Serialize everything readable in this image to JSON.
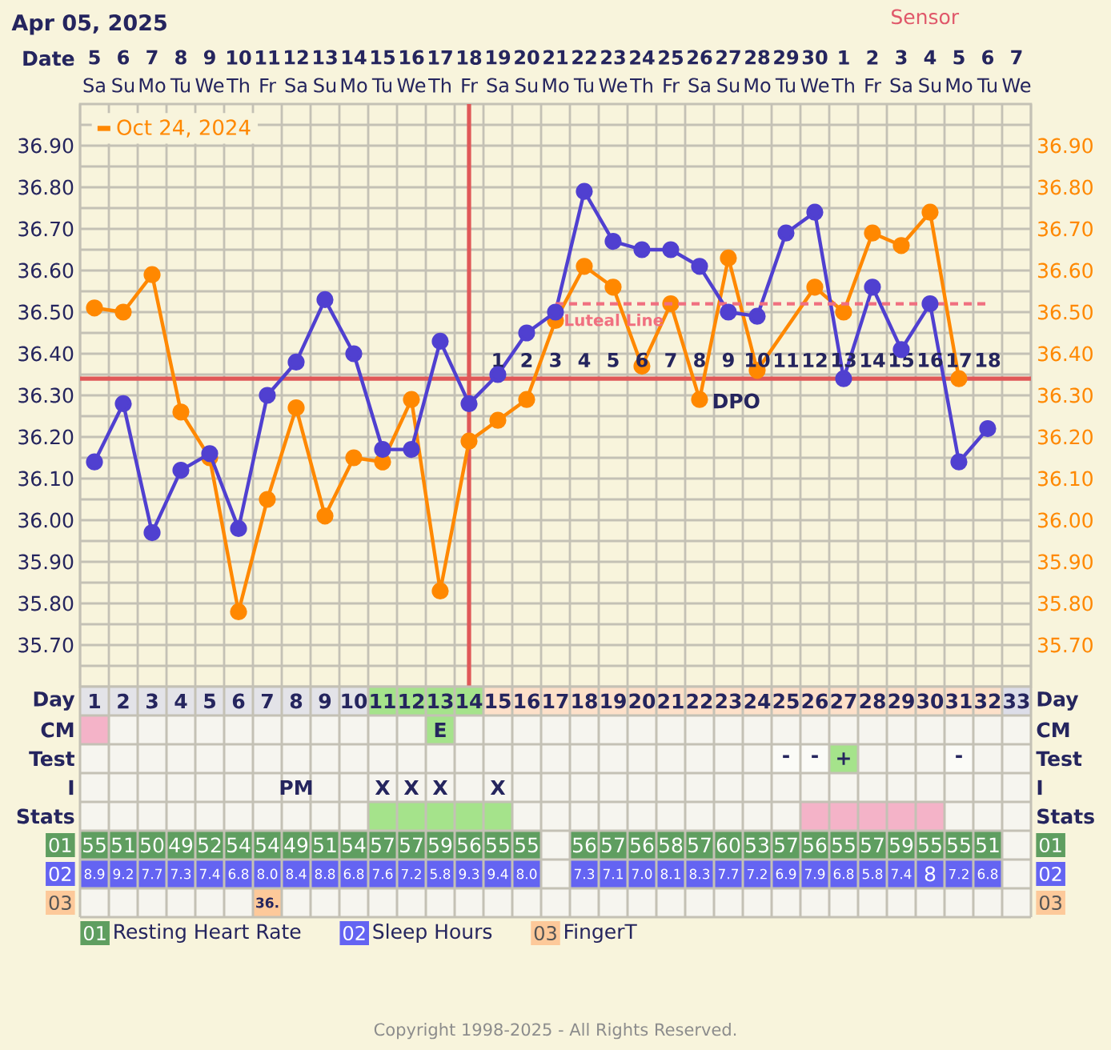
{
  "chart_data": [
    {
      "type": "line",
      "title": "Apr 05, 2025",
      "subtitle": "Sensor",
      "xlabel": "Date",
      "categories": [
        "**5** Sa",
        "**6** Su",
        "**7** Mo",
        "**8** Tu",
        "**9** We",
        "**10** Th",
        "**11** Fr",
        "**12** Sa",
        "**13** Su",
        "**14** Mo",
        "**15** Tu",
        "**16** We",
        "**17** Th",
        "**18** Fr",
        "**19** Sa",
        "**20** Su",
        "**21** Mo",
        "**22** Tu",
        "**23** We",
        "**24** Th",
        "**25** Fr",
        "**26** Sa",
        "**27** Su",
        "**28** Mo",
        "**29** Tu",
        "**30** We",
        "**1** Th",
        "**2** Fr",
        "**3** Sa",
        "**4** Su",
        "**5** Mo",
        "**6** Tu",
        "**7** We"
      ],
      "series": [
        {
          "color": "#5040d0",
          "values": [
            36.14,
            36.28,
            35.97,
            36.12,
            36.16,
            35.98,
            36.3,
            36.38,
            36.53,
            36.4,
            36.17,
            36.17,
            36.43,
            36.28,
            36.35,
            36.45,
            36.5,
            36.79,
            36.67,
            36.65,
            36.65,
            36.61,
            36.5,
            36.49,
            36.69,
            36.74,
            36.34,
            36.56,
            36.41,
            36.52,
            36.14,
            36.22,
            null
          ]
        },
        {
          "name": "Oct 24, 2024",
          "color": "#ff8800",
          "axis": "y2",
          "values": [
            36.51,
            36.5,
            36.59,
            36.26,
            36.15,
            35.78,
            36.05,
            36.27,
            36.01,
            36.15,
            36.14,
            36.29,
            35.83,
            36.19,
            36.24,
            36.29,
            36.48,
            36.61,
            36.56,
            36.37,
            36.52,
            36.29,
            36.63,
            36.36,
            null,
            36.56,
            36.5,
            36.69,
            36.66,
            36.74,
            36.34,
            null,
            null
          ]
        },
        {
          "name": "Luteal Line",
          "color": "#f07080",
          "marker": "none",
          "line_style": "dashed",
          "values": [
            null,
            null,
            null,
            null,
            null,
            null,
            null,
            null,
            null,
            null,
            null,
            null,
            null,
            null,
            null,
            null,
            36.52,
            36.52,
            36.52,
            36.52,
            36.52,
            36.52,
            36.52,
            36.52,
            36.52,
            36.52,
            36.52,
            36.52,
            36.52,
            36.52,
            36.52,
            36.52,
            null
          ]
        }
      ],
      "ylim": [
        35.6,
        37.0
      ],
      "yticks": [
        {
          "value": 35.65,
          "label": null
        },
        {
          "value": 35.7,
          "label": "35.70"
        },
        {
          "value": 35.75,
          "label": null
        },
        {
          "value": 35.8,
          "label": "35.80"
        },
        {
          "value": 35.85,
          "label": null
        },
        {
          "value": 35.9,
          "label": "35.90"
        },
        {
          "value": 35.95,
          "label": null
        },
        {
          "value": 36.0,
          "label": "36.00"
        },
        {
          "value": 36.05,
          "label": null
        },
        {
          "value": 36.1,
          "label": "36.10"
        },
        {
          "value": 36.15,
          "label": null
        },
        {
          "value": 36.2,
          "label": "36.20"
        },
        {
          "value": 36.25,
          "label": null
        },
        {
          "value": 36.3,
          "label": "36.30"
        },
        {
          "value": 36.35,
          "label": null
        },
        {
          "value": 36.4,
          "label": "36.40"
        },
        {
          "value": 36.45,
          "label": null
        },
        {
          "value": 36.5,
          "label": "36.50"
        },
        {
          "value": 36.55,
          "label": null
        },
        {
          "value": 36.6,
          "label": "36.60"
        },
        {
          "value": 36.65,
          "label": null
        },
        {
          "value": 36.7,
          "label": "36.70"
        },
        {
          "value": 36.75,
          "label": null
        },
        {
          "value": 36.8,
          "label": "36.80"
        },
        {
          "value": 36.85,
          "label": null
        },
        {
          "value": 36.9,
          "label": "36.90"
        },
        {
          "value": 36.95,
          "label": null
        }
      ],
      "y2lim": [
        35.6,
        37.0
      ],
      "y2ticks": [
        {
          "value": 35.7,
          "label": "35.70"
        },
        {
          "value": 35.8,
          "label": "35.80"
        },
        {
          "value": 35.9,
          "label": "35.90"
        },
        {
          "value": 36.0,
          "label": "36.00"
        },
        {
          "value": 36.1,
          "label": "36.10"
        },
        {
          "value": 36.2,
          "label": "36.20"
        },
        {
          "value": 36.3,
          "label": "36.30"
        },
        {
          "value": 36.4,
          "label": "36.40"
        },
        {
          "value": 36.5,
          "label": "36.50"
        },
        {
          "value": 36.6,
          "label": "36.60"
        },
        {
          "value": 36.7,
          "label": "36.70"
        },
        {
          "value": 36.8,
          "label": "36.80"
        },
        {
          "value": 36.9,
          "label": "36.90"
        }
      ],
      "grid": true,
      "legend": "top left",
      "marker": "circle",
      "line_style": "solid",
      "ref_lines": [
        {
          "axis": "y",
          "value": 36.34,
          "color": "#e05858",
          "label": "DPO"
        },
        {
          "axis": "x",
          "value": "**18** Fr",
          "color": "#e05858"
        }
      ],
      "annotations": [
        {
          "text": "1",
          "x": "**19** Sa",
          "y": 36.34
        },
        {
          "text": "2",
          "x": "**20** Su",
          "y": 36.34
        },
        {
          "text": "3",
          "x": "**21** Mo",
          "y": 36.34
        },
        {
          "text": "4",
          "x": "**22** Tu",
          "y": 36.34
        },
        {
          "text": "5",
          "x": "**23** We",
          "y": 36.34
        },
        {
          "text": "6",
          "x": "**24** Th",
          "y": 36.34
        },
        {
          "text": "7",
          "x": "**25** Fr",
          "y": 36.34
        },
        {
          "text": "8",
          "x": "**26** Sa",
          "y": 36.34
        },
        {
          "text": "9",
          "x": "**27** Su",
          "y": 36.34
        },
        {
          "text": "10",
          "x": "**28** Mo",
          "y": 36.34
        },
        {
          "text": "11",
          "x": "**29** Tu",
          "y": 36.34
        },
        {
          "text": "12",
          "x": "**30** We",
          "y": 36.34
        },
        {
          "text": "13",
          "x": "**1** Th",
          "y": 36.34
        },
        {
          "text": "14",
          "x": "**2** Fr",
          "y": 36.34
        },
        {
          "text": "15",
          "x": "**3** Sa",
          "y": 36.34
        },
        {
          "text": "16",
          "x": "**4** Su",
          "y": 36.34
        },
        {
          "text": "17",
          "x": "**5** Mo",
          "y": 36.34
        },
        {
          "text": "18",
          "x": "**6** Tu",
          "y": 36.34
        },
        "Copyright 1998-2025 - All Rights Reserved."
      ]
    },
    {
      "type": "heatmap",
      "categories": [
        null,
        null,
        null,
        null,
        null,
        null,
        null,
        null,
        null,
        null,
        null,
        null,
        null,
        null,
        null,
        null,
        null,
        null,
        null,
        null,
        null,
        null,
        null,
        null,
        null,
        null,
        null,
        null,
        null,
        null,
        null,
        null,
        null
      ],
      "y_categories": [
        "Day",
        "CM",
        "Test",
        "I",
        "Stats",
        "01",
        "02",
        "03"
      ],
      "y2_categories": [
        "Day",
        "CM",
        "Test",
        "I",
        "Stats",
        "01",
        "02",
        "03"
      ],
      "cells": [
        [
          null,
          null,
          null,
          null,
          null,
          null,
          null,
          null,
          null,
          null,
          null,
          null,
          null,
          null,
          null,
          null,
          null,
          null,
          null,
          null,
          null,
          null,
          null,
          null,
          null,
          null,
          null,
          null,
          null,
          null,
          null,
          null,
          null
        ],
        [
          null,
          null,
          null,
          null,
          null,
          null,
          null,
          null,
          null,
          null,
          null,
          null,
          null,
          null,
          null,
          null,
          null,
          null,
          null,
          null,
          null,
          null,
          null,
          null,
          null,
          null,
          null,
          null,
          null,
          null,
          null,
          null,
          null
        ],
        [
          null,
          null,
          null,
          null,
          null,
          null,
          null,
          null,
          null,
          null,
          null,
          null,
          null,
          null,
          null,
          null,
          null,
          null,
          null,
          null,
          null,
          null,
          null,
          null,
          null,
          null,
          null,
          null,
          null,
          null,
          null,
          null,
          null
        ],
        [
          null,
          null,
          null,
          null,
          null,
          null,
          null,
          null,
          null,
          null,
          null,
          null,
          null,
          null,
          null,
          null,
          null,
          null,
          null,
          null,
          null,
          null,
          null,
          null,
          null,
          null,
          null,
          null,
          null,
          null,
          null,
          null,
          null
        ],
        [
          null,
          null,
          null,
          null,
          null,
          null,
          null,
          null,
          null,
          null,
          null,
          null,
          null,
          null,
          null,
          null,
          null,
          null,
          null,
          null,
          null,
          null,
          null,
          null,
          null,
          null,
          null,
          null,
          null,
          null,
          null,
          null,
          null
        ],
        [
          null,
          null,
          null,
          null,
          null,
          null,
          null,
          null,
          null,
          null,
          null,
          null,
          null,
          null,
          null,
          null,
          null,
          null,
          null,
          null,
          null,
          null,
          null,
          null,
          null,
          null,
          null,
          null,
          null,
          null,
          null,
          null,
          null
        ],
        [
          null,
          null,
          null,
          null,
          null,
          null,
          null,
          null,
          null,
          null,
          null,
          null,
          null,
          null,
          null,
          null,
          null,
          null,
          null,
          null,
          null,
          null,
          null,
          null,
          null,
          null,
          null,
          null,
          null,
          null,
          null,
          null,
          null
        ],
        [
          null,
          null,
          null,
          null,
          null,
          null,
          null,
          null,
          null,
          null,
          null,
          null,
          null,
          null,
          null,
          null,
          null,
          null,
          null,
          null,
          null,
          null,
          null,
          null,
          null,
          null,
          null,
          null,
          null,
          null,
          null,
          null,
          null
        ]
      ],
      "cell_labels": [
        [
          "1",
          "2",
          "3",
          "4",
          "5",
          "6",
          "7",
          "8",
          "9",
          "10",
          "11",
          "12",
          "13",
          "14",
          "15",
          "16",
          "17",
          "18",
          "19",
          "20",
          "21",
          "22",
          "23",
          "24",
          "25",
          "26",
          "27",
          "28",
          "29",
          "30",
          "31",
          "32",
          "33"
        ],
        [
          null,
          null,
          null,
          null,
          null,
          null,
          null,
          null,
          null,
          null,
          null,
          null,
          "E",
          null,
          null,
          null,
          null,
          null,
          null,
          null,
          null,
          null,
          null,
          null,
          null,
          null,
          null,
          null,
          null,
          null,
          null,
          null,
          null
        ],
        [
          null,
          null,
          null,
          null,
          null,
          null,
          null,
          null,
          null,
          null,
          null,
          null,
          null,
          null,
          null,
          null,
          null,
          null,
          null,
          null,
          null,
          null,
          null,
          null,
          "-",
          "-",
          "+",
          null,
          null,
          null,
          "-",
          null,
          null
        ],
        [
          null,
          null,
          null,
          null,
          null,
          null,
          null,
          "PM",
          null,
          null,
          "X",
          "X",
          "X",
          null,
          "X",
          null,
          null,
          null,
          null,
          null,
          null,
          null,
          null,
          null,
          null,
          null,
          null,
          null,
          null,
          null,
          null,
          null,
          null
        ],
        [
          null,
          null,
          null,
          null,
          null,
          null,
          null,
          null,
          null,
          null,
          null,
          null,
          null,
          null,
          null,
          null,
          null,
          null,
          null,
          null,
          null,
          null,
          null,
          null,
          null,
          null,
          null,
          null,
          null,
          null,
          null,
          null,
          null
        ],
        [
          "55",
          "51",
          "50",
          "49",
          "52",
          "54",
          "54",
          "49",
          "51",
          "54",
          "57",
          "57",
          "59",
          "56",
          "55",
          "55",
          null,
          "56",
          "57",
          "56",
          "58",
          "57",
          "60",
          "53",
          "57",
          "56",
          "55",
          "57",
          "59",
          "55",
          "55",
          "51",
          null
        ],
        [
          "8.9",
          "9.2",
          "7.7",
          "7.3",
          "7.4",
          "6.8",
          "8.0",
          "8.4",
          "8.8",
          "6.8",
          "7.6",
          "7.2",
          "5.8",
          "9.3",
          "9.4",
          "8.0",
          null,
          "7.3",
          "7.1",
          "7.0",
          "8.1",
          "8.3",
          "7.7",
          "7.2",
          "6.9",
          "7.9",
          "6.8",
          "5.8",
          "7.4",
          "8",
          "7.2",
          "6.8",
          null
        ],
        [
          null,
          null,
          null,
          null,
          null,
          null,
          "36.",
          null,
          null,
          null,
          null,
          null,
          null,
          null,
          null,
          null,
          null,
          null,
          null,
          null,
          null,
          null,
          null,
          null,
          null,
          null,
          null,
          null,
          null,
          null,
          null,
          null,
          null
        ]
      ],
      "colors": [
        [
          "#e3e3e8",
          "#e3e3e8",
          "#e3e3e8",
          "#e3e3e8",
          "#e3e3e8",
          "#e3e3e8",
          "#e3e3e8",
          "#e3e3e8",
          "#e3e3e8",
          "#e3e3e8",
          "#a5e38b",
          "#a5e38b",
          "#a5e38b",
          "#a5e38b",
          "#fde0c9",
          "#fde0c9",
          "#fde0c9",
          "#fde0c9",
          "#fde0c9",
          "#fde0c9",
          "#fde0c9",
          "#fde0c9",
          "#fde0c9",
          "#fde0c9",
          "#fde0c9",
          "#fde0c9",
          "#fde0c9",
          "#fde0c9",
          "#fde0c9",
          "#fde0c9",
          "#fde0c9",
          "#fde0c9",
          "#dcdde8"
        ],
        [
          "#f4b3c8",
          null,
          null,
          null,
          null,
          null,
          null,
          null,
          null,
          null,
          null,
          null,
          "#a5e38b",
          null,
          null,
          null,
          null,
          null,
          null,
          null,
          null,
          null,
          null,
          null,
          null,
          null,
          null,
          null,
          null,
          null,
          null,
          null,
          null
        ],
        [
          null,
          null,
          null,
          null,
          null,
          null,
          null,
          null,
          null,
          null,
          null,
          null,
          null,
          null,
          null,
          null,
          null,
          null,
          null,
          null,
          null,
          null,
          null,
          null,
          "#fbfbf7",
          "#fbfbf7",
          "#a5e38b",
          null,
          null,
          null,
          "#fbfbf7",
          null,
          null
        ],
        [
          null,
          null,
          null,
          null,
          null,
          null,
          null,
          null,
          null,
          null,
          null,
          null,
          null,
          null,
          null,
          null,
          null,
          null,
          null,
          null,
          null,
          null,
          null,
          null,
          null,
          null,
          null,
          null,
          null,
          null,
          null,
          null,
          null
        ],
        [
          null,
          null,
          null,
          null,
          null,
          null,
          null,
          null,
          null,
          null,
          "#a5e38b",
          "#a5e38b",
          "#a5e38b",
          "#a5e38b",
          "#a5e38b",
          null,
          null,
          null,
          null,
          null,
          null,
          null,
          null,
          null,
          null,
          "#f4b3c8",
          "#f4b3c8",
          "#f4b3c8",
          "#f4b3c8",
          "#f4b3c8",
          null,
          null,
          null
        ],
        [
          "#5f9e60",
          "#5f9e60",
          "#5f9e60",
          "#5f9e60",
          "#5f9e60",
          "#5f9e60",
          "#5f9e60",
          "#5f9e60",
          "#5f9e60",
          "#5f9e60",
          "#5f9e60",
          "#5f9e60",
          "#5f9e60",
          "#5f9e60",
          "#5f9e60",
          "#5f9e60",
          null,
          "#5f9e60",
          "#5f9e60",
          "#5f9e60",
          "#5f9e60",
          "#5f9e60",
          "#5f9e60",
          "#5f9e60",
          "#5f9e60",
          "#5f9e60",
          "#5f9e60",
          "#5f9e60",
          "#5f9e60",
          "#5f9e60",
          "#5f9e60",
          "#5f9e60",
          null
        ],
        [
          "#6464f2",
          "#6464f2",
          "#6464f2",
          "#6464f2",
          "#6464f2",
          "#6464f2",
          "#6464f2",
          "#6464f2",
          "#6464f2",
          "#6464f2",
          "#6464f2",
          "#6464f2",
          "#6464f2",
          "#6464f2",
          "#6464f2",
          "#6464f2",
          null,
          "#6464f2",
          "#6464f2",
          "#6464f2",
          "#6464f2",
          "#6464f2",
          "#6464f2",
          "#6464f2",
          "#6464f2",
          "#6464f2",
          "#6464f2",
          "#6464f2",
          "#6464f2",
          "#6464f2",
          "#6464f2",
          "#6464f2",
          null
        ],
        [
          null,
          null,
          null,
          null,
          null,
          null,
          "#fdc99a",
          null,
          null,
          null,
          null,
          null,
          null,
          null,
          null,
          null,
          null,
          null,
          null,
          null,
          null,
          null,
          null,
          null,
          null,
          null,
          null,
          null,
          null,
          null,
          null,
          null,
          null
        ]
      ],
      "annotations": [
        "Resting Heart Rate",
        "Sleep Hours",
        "FingerT"
      ]
    }
  ]
}
